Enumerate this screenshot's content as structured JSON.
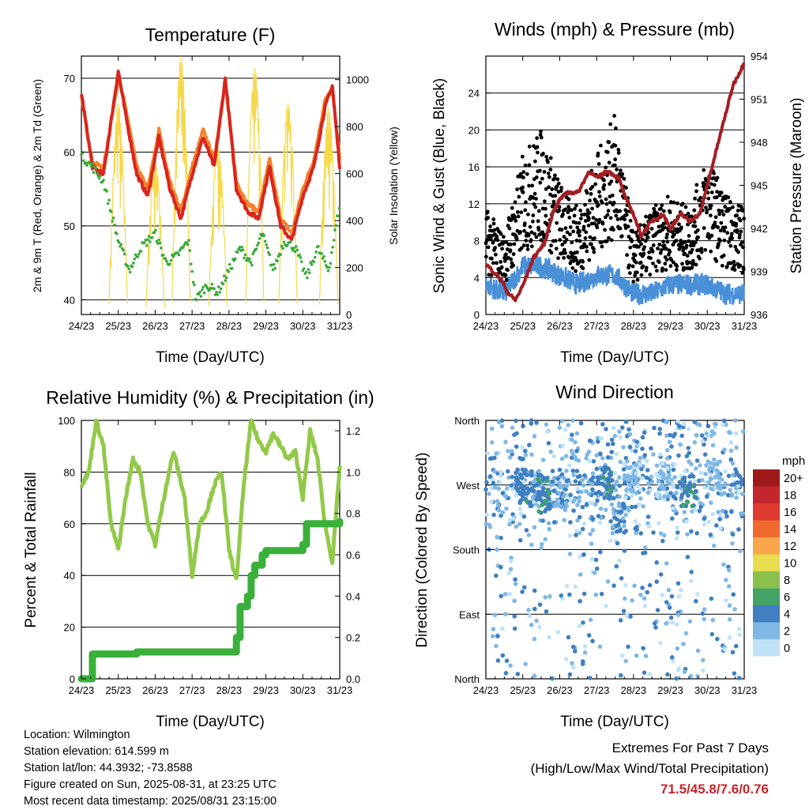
{
  "colors": {
    "temp2m": "#d7261e",
    "temp9m": "#f4822b",
    "dewpoint": "#3aaa3a",
    "solar": "#f5d94a",
    "wind": "#4a90d9",
    "gust": "#000000",
    "pressure": "#a31f24",
    "rh": "#92c94a",
    "precip": "#3ab03a",
    "extremes": "#c8232a"
  },
  "chart_data": [
    {
      "type": "line",
      "title": "Temperature (F)",
      "xlabel": "Time (Day/UTC)",
      "ylabel": "2m & 9m T (Red, Orange) & 2m Td (Green)",
      "y2label": "Solar Insolation (Yellow)",
      "x_ticks": [
        "24/23",
        "25/23",
        "26/23",
        "27/23",
        "28/23",
        "29/23",
        "30/23",
        "31/23"
      ],
      "ylim": [
        38,
        73
      ],
      "y_ticks": [
        40,
        50,
        60,
        70
      ],
      "y2lim": [
        0,
        1100
      ],
      "y2_ticks": [
        0,
        200,
        400,
        600,
        800,
        1000
      ],
      "series": [
        {
          "name": "2m T",
          "x": [
            0,
            0.3,
            0.6,
            1.0,
            1.2,
            1.5,
            1.8,
            2.1,
            2.4,
            2.7,
            3.0,
            3.3,
            3.6,
            3.9,
            4.2,
            4.5,
            4.8,
            5.1,
            5.4,
            5.7,
            6.0,
            6.3,
            6.6,
            6.8,
            7.0
          ],
          "values": [
            68,
            58,
            57,
            71,
            65,
            57,
            54,
            62,
            55,
            51,
            57,
            62,
            58,
            70,
            55,
            52,
            51,
            58,
            50,
            48,
            54,
            58,
            66,
            69,
            58
          ]
        },
        {
          "name": "9m T",
          "x": [
            0,
            0.3,
            0.6,
            1.0,
            1.2,
            1.5,
            1.8,
            2.1,
            2.4,
            2.7,
            3.0,
            3.3,
            3.6,
            3.9,
            4.2,
            4.5,
            4.8,
            5.1,
            5.4,
            5.7,
            6.0,
            6.3,
            6.6,
            6.8,
            7.0
          ],
          "values": [
            67.5,
            58.5,
            58,
            70,
            66,
            58,
            55,
            63,
            56,
            52,
            58,
            63,
            59,
            69.5,
            56,
            53,
            52,
            59,
            51,
            49,
            55,
            59,
            67,
            68.5,
            59
          ]
        },
        {
          "name": "2m Td",
          "x": [
            0,
            0.3,
            0.6,
            1.0,
            1.3,
            1.6,
            2.0,
            2.3,
            2.6,
            2.9,
            3.1,
            3.4,
            3.7,
            4.0,
            4.3,
            4.6,
            4.9,
            5.2,
            5.5,
            5.8,
            6.1,
            6.4,
            6.7,
            7.0
          ],
          "values": [
            59.5,
            58,
            56,
            48,
            44,
            47,
            49,
            45,
            46,
            48,
            40,
            42,
            41,
            44,
            47,
            45,
            49,
            44,
            48,
            47,
            43,
            47,
            44,
            53
          ]
        }
      ],
      "solar_peaks": [
        {
          "x": 1.0,
          "value": 900
        },
        {
          "x": 2.0,
          "value": 650
        },
        {
          "x": 2.7,
          "value": 1100
        },
        {
          "x": 3.7,
          "value": 720
        },
        {
          "x": 4.7,
          "value": 1050
        },
        {
          "x": 5.6,
          "value": 900
        },
        {
          "x": 6.7,
          "value": 880
        }
      ]
    },
    {
      "type": "scatter",
      "title": "Winds (mph) & Pressure (mb)",
      "xlabel": "Time (Day/UTC)",
      "ylabel": "Sonic Wind & Gust (Blue, Black)",
      "y2label": "Station Pressure (Maroon)",
      "x_ticks": [
        "24/23",
        "25/23",
        "26/23",
        "27/23",
        "28/23",
        "29/23",
        "30/23",
        "31/23"
      ],
      "ylim": [
        0,
        28
      ],
      "y_ticks": [
        0,
        4,
        8,
        12,
        16,
        20,
        24
      ],
      "y2lim": [
        936,
        954
      ],
      "y2_ticks": [
        936,
        939,
        942,
        945,
        948,
        951,
        954
      ],
      "series": [
        {
          "name": "Sonic Wind",
          "x": [
            0,
            0.5,
            1.0,
            1.5,
            2.0,
            2.5,
            3.0,
            3.5,
            4.0,
            4.5,
            5.0,
            5.5,
            6.0,
            6.5,
            7.0
          ],
          "values": [
            3,
            2,
            5,
            5,
            4,
            3,
            4,
            4,
            2,
            2,
            3,
            3,
            3,
            2,
            2
          ]
        },
        {
          "name": "Gust",
          "x": [
            0,
            0.5,
            1.0,
            1.5,
            2.0,
            2.5,
            3.0,
            3.5,
            4.0,
            4.5,
            5.0,
            5.5,
            6.0,
            6.5,
            7.0
          ],
          "values": [
            8,
            6,
            12,
            14,
            10,
            8,
            12,
            15,
            6,
            8,
            9,
            8,
            12,
            9,
            8
          ]
        },
        {
          "name": "Station Pressure",
          "x": [
            0,
            0.2,
            0.4,
            0.6,
            0.8,
            1.0,
            1.3,
            1.6,
            1.8,
            2.0,
            2.2,
            2.5,
            2.8,
            3.0,
            3.3,
            3.6,
            3.8,
            4.0,
            4.2,
            4.5,
            4.8,
            5.0,
            5.3,
            5.5,
            5.8,
            6.0,
            6.2,
            6.5,
            6.7,
            6.9,
            7.0
          ],
          "values": [
            939.5,
            939,
            938.5,
            937.5,
            937,
            938,
            940,
            941,
            943,
            944,
            944.5,
            944.5,
            946,
            945.5,
            946,
            945.5,
            944,
            943,
            941.5,
            942.5,
            943,
            942,
            943,
            942.5,
            943,
            945,
            947,
            950,
            952,
            953,
            953.5
          ]
        }
      ]
    },
    {
      "type": "line",
      "title": "Relative Humidity (%) & Precipitation (in)",
      "xlabel": "Time (Day/UTC)",
      "ylabel": "Percent & Total Rainfall",
      "x_ticks": [
        "24/23",
        "25/23",
        "26/23",
        "27/23",
        "28/23",
        "29/23",
        "30/23",
        "31/23"
      ],
      "ylim": [
        0,
        100
      ],
      "y_ticks": [
        0,
        20,
        40,
        60,
        80,
        100
      ],
      "y2lim": [
        0,
        1.25
      ],
      "y2_ticks": [
        "0.0",
        "0.2",
        "0.4",
        "0.6",
        "0.8",
        "1.0",
        "1.2"
      ],
      "series": [
        {
          "name": "Relative Humidity",
          "x": [
            0,
            0.2,
            0.4,
            0.6,
            0.8,
            1.0,
            1.2,
            1.4,
            1.6,
            1.8,
            2.0,
            2.3,
            2.5,
            2.8,
            3.0,
            3.2,
            3.4,
            3.6,
            3.8,
            4.0,
            4.2,
            4.4,
            4.6,
            4.8,
            5.0,
            5.2,
            5.4,
            5.6,
            5.8,
            6.0,
            6.2,
            6.4,
            6.6,
            6.8,
            7.0
          ],
          "values": [
            75,
            80,
            100,
            90,
            60,
            50,
            70,
            85,
            80,
            60,
            52,
            75,
            88,
            70,
            40,
            60,
            65,
            75,
            80,
            50,
            38,
            75,
            100,
            92,
            88,
            95,
            90,
            85,
            88,
            70,
            96,
            85,
            60,
            45,
            82
          ]
        },
        {
          "name": "Total Precipitation",
          "x": [
            0,
            0.2,
            0.3,
            0.5,
            1.0,
            1.5,
            2.0,
            3.0,
            4.0,
            4.2,
            4.3,
            4.5,
            4.6,
            4.7,
            4.9,
            5.0,
            5.5,
            6.0,
            6.1,
            6.5,
            7.0
          ],
          "values": [
            0,
            0,
            0.12,
            0.12,
            0.12,
            0.13,
            0.13,
            0.13,
            0.13,
            0.2,
            0.35,
            0.4,
            0.5,
            0.55,
            0.6,
            0.62,
            0.62,
            0.65,
            0.75,
            0.75,
            0.76
          ]
        }
      ]
    },
    {
      "type": "scatter",
      "title": "Wind Direction",
      "xlabel": "Time (Day/UTC)",
      "ylabel": "Direction (Colored By Speed)",
      "x_ticks": [
        "24/23",
        "25/23",
        "26/23",
        "27/23",
        "28/23",
        "29/23",
        "30/23",
        "31/23"
      ],
      "y_ticks": [
        "North",
        "East",
        "South",
        "West",
        "North"
      ],
      "legend_title": "mph",
      "legend_labels": [
        "20+",
        "18",
        "16",
        "14",
        "12",
        "10",
        "8",
        "6",
        "4",
        "2",
        "0"
      ],
      "legend_colors": [
        "#9e1a1a",
        "#c1272d",
        "#de3b2f",
        "#f06a2f",
        "#f8a54c",
        "#e8dc4f",
        "#8cc04c",
        "#43a265",
        "#3f7fc2",
        "#7fb8e4",
        "#bfe2f6"
      ],
      "clusters": [
        {
          "x": 1.0,
          "direction": 270,
          "speed": 6
        },
        {
          "x": 1.4,
          "direction": 265,
          "speed": 5
        },
        {
          "x": 1.6,
          "direction": 255,
          "speed": 6
        },
        {
          "x": 2.0,
          "direction": 260,
          "speed": 4
        },
        {
          "x": 3.2,
          "direction": 270,
          "speed": 6
        },
        {
          "x": 3.6,
          "direction": 230,
          "speed": 5
        },
        {
          "x": 4.0,
          "direction": 280,
          "speed": 3
        },
        {
          "x": 4.8,
          "direction": 275,
          "speed": 3
        },
        {
          "x": 5.5,
          "direction": 260,
          "speed": 6
        },
        {
          "x": 6.2,
          "direction": 285,
          "speed": 3
        }
      ]
    }
  ],
  "info": {
    "location": "Location: Wilmington",
    "elevation": "Station elevation: 614.599 m",
    "latlon": "Station lat/lon: 44.3932; -73.8588",
    "created": "Figure created on Sun, 2025-08-31, at 23:25 UTC",
    "timestamp": "Most recent data timestamp: 2025/08/31 23:15:00"
  },
  "extremes": {
    "title": "Extremes For Past 7 Days",
    "subtitle": "(High/Low/Max Wind/Total Precipitation)",
    "values": "71.5/45.8/7.6/0.76"
  }
}
